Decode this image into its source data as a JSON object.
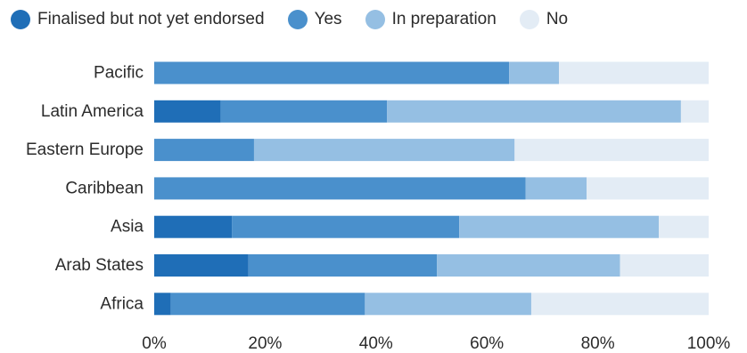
{
  "chart_data": {
    "type": "bar",
    "orientation": "horizontal",
    "stacked": true,
    "categories": [
      "Pacific",
      "Latin America",
      "Eastern Europe",
      "Caribbean",
      "Asia",
      "Arab States",
      "Africa"
    ],
    "series": [
      {
        "name": "Finalised but not yet endorsed",
        "color": "#1f6eb7",
        "values": [
          0,
          12,
          0,
          0,
          14,
          17,
          3
        ]
      },
      {
        "name": "Yes",
        "color": "#4a90cc",
        "values": [
          64,
          30,
          18,
          67,
          41,
          34,
          35
        ]
      },
      {
        "name": "In preparation",
        "color": "#95bfe3",
        "values": [
          9,
          53,
          47,
          11,
          36,
          33,
          30
        ]
      },
      {
        "name": "No",
        "color": "#e3ecf5",
        "values": [
          27,
          5,
          35,
          22,
          9,
          16,
          32
        ]
      }
    ],
    "x_ticks": [
      "0%",
      "20%",
      "40%",
      "60%",
      "80%",
      "100%"
    ],
    "xlim": [
      0,
      100
    ],
    "legend_position": "top"
  }
}
